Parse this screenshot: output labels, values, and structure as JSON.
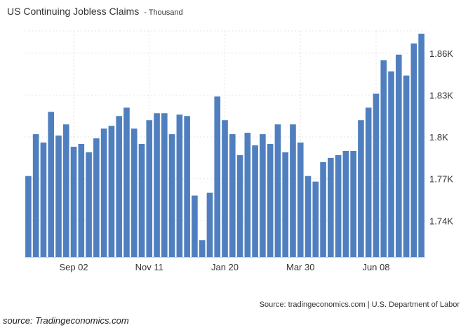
{
  "chart_title": "US Continuing Jobless Claims",
  "chart_subtitle": "- Thousand",
  "source_line": "Source: tradingeconomics.com | U.S. Department of Labor",
  "caption": "source: Tradingeconomics.com",
  "colors": {
    "bar": "#4f7fbf",
    "grid": "#e3e3e3",
    "text": "#333333"
  },
  "chart_data": {
    "type": "bar",
    "title": "US Continuing Jobless Claims",
    "subtitle": "- Thousand",
    "unit": "Thousand",
    "xlabel": "",
    "ylabel": "",
    "ylim": [
      1.714,
      1.876
    ],
    "y_ticks": [
      1.74,
      1.77,
      1.8,
      1.83,
      1.86
    ],
    "y_tick_labels": [
      "1.74K",
      "1.77K",
      "1.8K",
      "1.83K",
      "1.86K"
    ],
    "y_axis_position": "right",
    "grid": true,
    "x_tick_labels": [
      {
        "label": "Sep 02",
        "index": 6
      },
      {
        "label": "Nov 11",
        "index": 16
      },
      {
        "label": "Jan 20",
        "index": 26
      },
      {
        "label": "Mar 30",
        "index": 36
      },
      {
        "label": "Jun 08",
        "index": 46
      }
    ],
    "values": [
      1.772,
      1.802,
      1.796,
      1.818,
      1.801,
      1.809,
      1.793,
      1.795,
      1.789,
      1.799,
      1.806,
      1.808,
      1.815,
      1.821,
      1.806,
      1.795,
      1.812,
      1.817,
      1.817,
      1.802,
      1.816,
      1.815,
      1.758,
      1.726,
      1.76,
      1.829,
      1.812,
      1.802,
      1.787,
      1.803,
      1.794,
      1.802,
      1.795,
      1.809,
      1.789,
      1.809,
      1.796,
      1.772,
      1.768,
      1.782,
      1.785,
      1.787,
      1.79,
      1.79,
      1.812,
      1.821,
      1.831,
      1.855,
      1.847,
      1.859,
      1.844,
      1.867,
      1.874
    ]
  }
}
